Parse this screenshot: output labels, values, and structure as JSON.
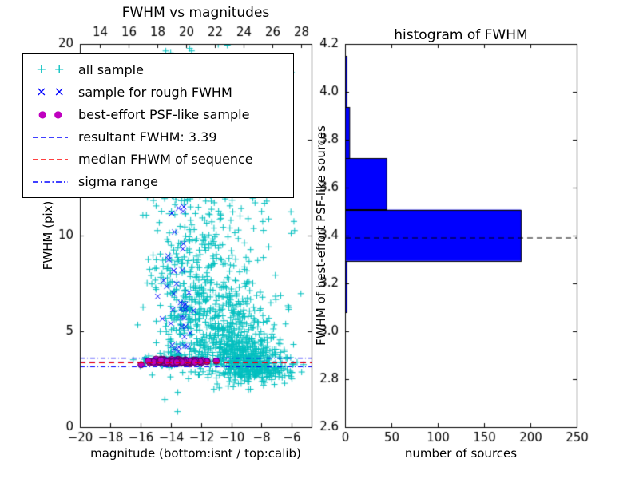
{
  "figure": {
    "background": "#ffffff"
  },
  "chart_data": [
    {
      "type": "scatter",
      "title": "FWHM vs magnitudes",
      "xlabel": "magnitude (bottom:isnt / top:calib)",
      "ylabel": "FWHM (pix)",
      "xlim": [
        -20,
        -4.7
      ],
      "ylim": [
        0,
        20
      ],
      "top_xlim": [
        12.6,
        28.7
      ],
      "xticks": {
        "values": [
          -20,
          -18,
          -16,
          -14,
          -12,
          -10,
          -8,
          -6
        ],
        "labels": [
          "−20",
          "−18",
          "−16",
          "−14",
          "−12",
          "−10",
          "−8",
          "−6"
        ]
      },
      "top_xticks": {
        "values": [
          14,
          16,
          18,
          20,
          22,
          24,
          26,
          28
        ],
        "labels": [
          "14",
          "16",
          "18",
          "20",
          "22",
          "24",
          "26",
          "28"
        ]
      },
      "yticks": {
        "values": [
          0,
          5,
          10,
          15,
          20
        ],
        "labels": [
          "0",
          "5",
          "10",
          "15",
          "20"
        ]
      },
      "grid": false,
      "legend_position": "upper left",
      "seed": 20240715,
      "series": [
        {
          "name": "all sample",
          "marker": "plus",
          "color": "#00bfbf",
          "clusters": [
            {
              "n": 420,
              "dist": "gauss",
              "mag": [
                -9.3,
                1.5
              ],
              "fwhm": [
                3.7,
                0.65
              ]
            },
            {
              "n": 180,
              "dist": "gauss",
              "mag": [
                -8.2,
                1.1
              ],
              "fwhm": [
                2.95,
                0.3
              ]
            },
            {
              "n": 230,
              "dist": "gauss",
              "mag": [
                -10.6,
                1.6
              ],
              "fwhm": [
                5.3,
                1.1
              ]
            },
            {
              "n": 180,
              "dist": "gauss",
              "mag": [
                -11.4,
                1.8
              ],
              "fwhm": [
                8.0,
                2.2
              ]
            },
            {
              "n": 130,
              "dist": "gauss",
              "mag": [
                -13.5,
                0.9
              ],
              "fwhm": [
                8.5,
                3.5
              ]
            },
            {
              "n": 110,
              "dist": "gauss",
              "mag": [
                -10.8,
                1.6
              ],
              "fwhm": [
                13.5,
                3.0
              ]
            },
            {
              "n": 90,
              "dist": "gauss",
              "mag": [
                -14.3,
                0.8
              ],
              "fwhm": [
                3.5,
                0.18
              ]
            },
            {
              "n": 60,
              "dist": "gauss",
              "mag": [
                -12.6,
                0.7
              ],
              "fwhm": [
                6.0,
                1.0
              ]
            },
            {
              "n": 60,
              "dist": "gauss",
              "mag": [
                -13.8,
                0.7
              ],
              "fwhm": [
                16.5,
                2.5
              ]
            },
            {
              "n": 90,
              "dist": "uniform",
              "mag": [
                -15.8,
                -5.8
              ],
              "fwhm": [
                2.3,
                19.8
              ]
            }
          ]
        },
        {
          "name": "sample for rough FWHM",
          "marker": "x",
          "color": "#0000ff",
          "clusters": [
            {
              "n": 16,
              "dist": "gauss",
              "mag": [
                -13.6,
                0.5
              ],
              "fwhm": [
                9.5,
                2.0
              ]
            },
            {
              "n": 12,
              "dist": "gauss",
              "mag": [
                -13.2,
                0.35
              ],
              "fwhm": [
                5.9,
                0.5
              ]
            },
            {
              "n": 9,
              "dist": "gauss",
              "mag": [
                -12.9,
                0.6
              ],
              "fwhm": [
                4.3,
                0.5
              ]
            },
            {
              "n": 6,
              "dist": "gauss",
              "mag": [
                -13.9,
                0.5
              ],
              "fwhm": [
                12.5,
                0.8
              ]
            },
            {
              "n": 5,
              "dist": "gauss",
              "mag": [
                -14.1,
                0.4
              ],
              "fwhm": [
                7.0,
                0.8
              ]
            }
          ]
        },
        {
          "name": "best-effort PSF-like sample",
          "marker": "circle",
          "color": "#bf00bf",
          "edge": "#5a005a",
          "clusters": [
            {
              "n": 90,
              "dist": "gauss",
              "mag": [
                -13.8,
                0.8
              ],
              "fwhm": [
                3.42,
                0.05
              ]
            },
            {
              "n": 30,
              "dist": "uniform",
              "mag": [
                -15.1,
                -12.0
              ],
              "fwhm": [
                3.36,
                3.5
              ]
            }
          ]
        }
      ],
      "lines": [
        {
          "name": "resultant FWHM",
          "y": 3.39,
          "color": "#0000ff",
          "dash": [
            7,
            5
          ]
        },
        {
          "name": "median FHWM of sequence",
          "y": 3.36,
          "color": "#ff0000",
          "dash": [
            7,
            5
          ]
        },
        {
          "name": "sigma range low",
          "y": 3.15,
          "color": "#0000ff",
          "dash": [
            6,
            3,
            1,
            3
          ]
        },
        {
          "name": "sigma range high",
          "y": 3.6,
          "color": "#0000ff",
          "dash": [
            6,
            3,
            1,
            3
          ]
        }
      ],
      "resultant_fwhm": 3.39
    },
    {
      "type": "bar",
      "orientation": "horizontal",
      "title": "histogram of FWHM",
      "xlabel": "number of sources",
      "ylabel": "FWHM of best-effort PSF-like sources",
      "xlim": [
        0,
        250
      ],
      "ylim": [
        2.6,
        4.2
      ],
      "xticks": {
        "values": [
          0,
          50,
          100,
          150,
          200,
          250
        ],
        "labels": [
          "0",
          "50",
          "100",
          "150",
          "200",
          "250"
        ]
      },
      "yticks": {
        "values": [
          2.6,
          2.8,
          3.0,
          3.2,
          3.4,
          3.6,
          3.8,
          4.0,
          4.2
        ],
        "labels": [
          "2.6",
          "2.8",
          "3.0",
          "3.2",
          "3.4",
          "3.6",
          "3.8",
          "4.0",
          "4.2"
        ]
      },
      "grid": false,
      "bar_color": "#0000ff",
      "bar_edge_color": "#000000",
      "bins": {
        "edges": [
          3.08,
          3.294,
          3.508,
          3.722,
          3.936,
          4.15
        ],
        "counts": [
          2,
          190,
          45,
          5,
          2
        ]
      },
      "marker_line": {
        "y": 3.39,
        "color": "#000000",
        "dash": [
          7,
          5
        ]
      }
    }
  ],
  "legend": {
    "items": [
      {
        "label": "all sample",
        "swatch": "plus",
        "color": "#00bfbf"
      },
      {
        "label": "sample for rough FWHM",
        "swatch": "x",
        "color": "#0000ff"
      },
      {
        "label": "best-effort PSF-like sample",
        "swatch": "circle",
        "color": "#bf00bf"
      },
      {
        "label": "resultant FWHM: 3.39",
        "swatch": "dashed-line",
        "color": "#0000ff"
      },
      {
        "label": "median FHWM of sequence",
        "swatch": "dashed-line",
        "color": "#ff0000"
      },
      {
        "label": "sigma range",
        "swatch": "dashdot-line",
        "color": "#0000ff"
      }
    ]
  }
}
